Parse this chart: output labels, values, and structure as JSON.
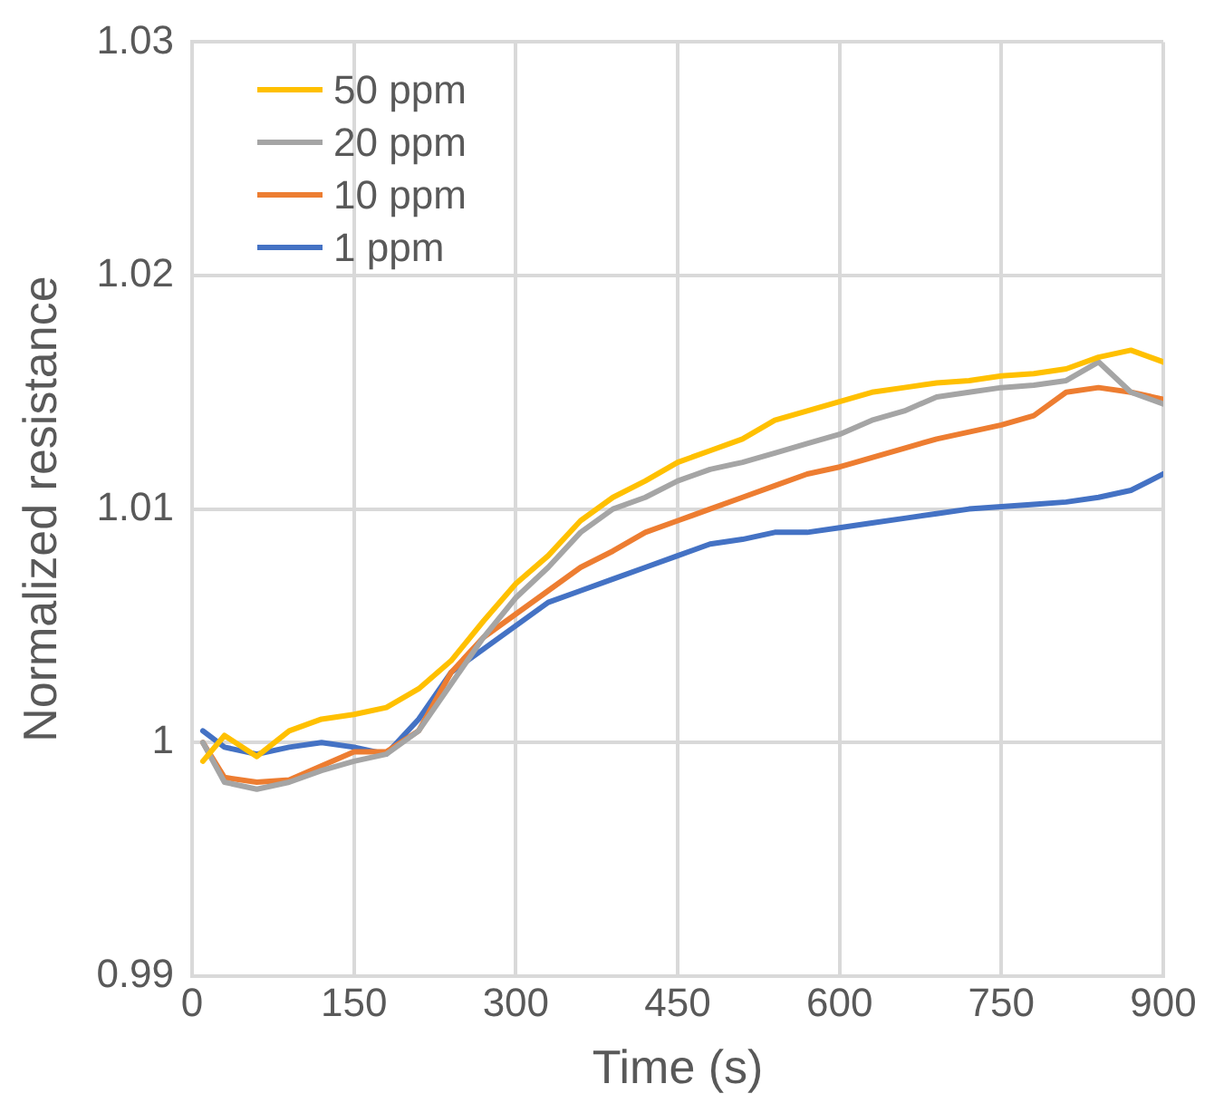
{
  "chart_data": {
    "type": "line",
    "xlabel": "Time (s)",
    "ylabel": "Normalized resistance",
    "x": [
      10,
      30,
      60,
      90,
      120,
      150,
      180,
      210,
      240,
      270,
      300,
      330,
      360,
      390,
      420,
      450,
      480,
      510,
      540,
      570,
      600,
      630,
      660,
      690,
      720,
      750,
      780,
      810,
      840,
      870,
      900
    ],
    "series": [
      {
        "name": "50 ppm",
        "color": "#ffc000",
        "values": [
          0.9992,
          1.0003,
          0.9994,
          1.0005,
          1.001,
          1.0012,
          1.0015,
          1.0023,
          1.0035,
          1.0052,
          1.0068,
          1.008,
          1.0095,
          1.0105,
          1.0112,
          1.012,
          1.0125,
          1.013,
          1.0138,
          1.0142,
          1.0146,
          1.015,
          1.0152,
          1.0154,
          1.0155,
          1.0157,
          1.0158,
          1.016,
          1.0165,
          1.0168,
          1.0163
        ]
      },
      {
        "name": "20 ppm",
        "color": "#a5a5a5",
        "values": [
          1.0,
          0.9983,
          0.998,
          0.9983,
          0.9988,
          0.9992,
          0.9995,
          1.0005,
          1.0025,
          1.0045,
          1.0062,
          1.0075,
          1.009,
          1.01,
          1.0105,
          1.0112,
          1.0117,
          1.012,
          1.0124,
          1.0128,
          1.0132,
          1.0138,
          1.0142,
          1.0148,
          1.015,
          1.0152,
          1.0153,
          1.0155,
          1.0163,
          1.015,
          1.0145
        ]
      },
      {
        "name": "10 ppm",
        "color": "#ed7d31",
        "values": [
          1.0,
          0.9985,
          0.9983,
          0.9984,
          0.999,
          0.9996,
          0.9996,
          1.0005,
          1.003,
          1.0045,
          1.0055,
          1.0065,
          1.0075,
          1.0082,
          1.009,
          1.0095,
          1.01,
          1.0105,
          1.011,
          1.0115,
          1.0118,
          1.0122,
          1.0126,
          1.013,
          1.0133,
          1.0136,
          1.014,
          1.015,
          1.0152,
          1.015,
          1.0147
        ]
      },
      {
        "name": "1 ppm",
        "color": "#4472c4",
        "values": [
          1.0005,
          0.9998,
          0.9995,
          0.9998,
          1.0,
          0.9998,
          0.9995,
          1.001,
          1.003,
          1.004,
          1.005,
          1.006,
          1.0065,
          1.007,
          1.0075,
          1.008,
          1.0085,
          1.0087,
          1.009,
          1.009,
          1.0092,
          1.0094,
          1.0096,
          1.0098,
          1.01,
          1.0101,
          1.0102,
          1.0103,
          1.0105,
          1.0108,
          1.0115
        ]
      }
    ],
    "xlim": [
      0,
      900
    ],
    "xticks": [
      0,
      150,
      300,
      450,
      600,
      750,
      900
    ],
    "ylim": [
      0.99,
      1.03
    ],
    "yticks": [
      0.99,
      1,
      1.01,
      1.02,
      1.03
    ],
    "grid": true,
    "legend": "top left",
    "marker": "none",
    "line_style": "solid"
  }
}
